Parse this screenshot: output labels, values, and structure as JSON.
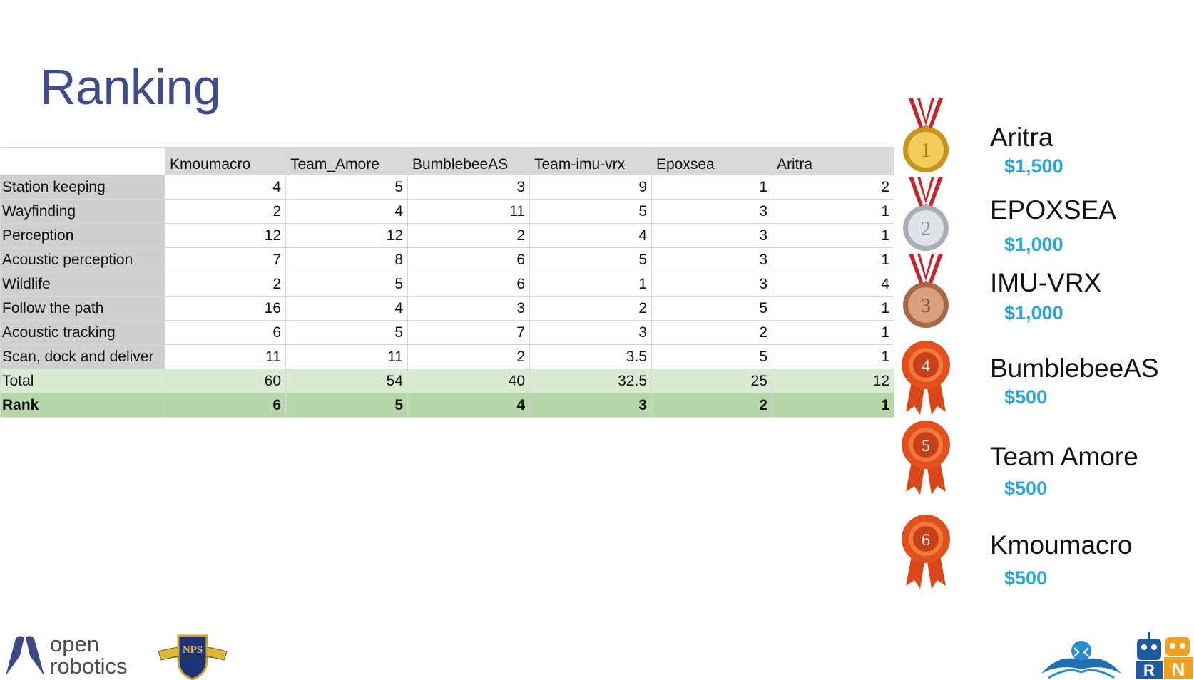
{
  "slide": {
    "title": "Ranking"
  },
  "table": {
    "columns": [
      "Kmoumacro",
      "Team_Amore",
      "BumblebeeAS",
      "Team-imu-vrx",
      "Epoxsea",
      "Aritra"
    ],
    "rows": [
      {
        "label": "Station keeping",
        "values": [
          "4",
          "5",
          "3",
          "9",
          "1",
          "2"
        ]
      },
      {
        "label": "Wayfinding",
        "values": [
          "2",
          "4",
          "11",
          "5",
          "3",
          "1"
        ]
      },
      {
        "label": "Perception",
        "values": [
          "12",
          "12",
          "2",
          "4",
          "3",
          "1"
        ]
      },
      {
        "label": "Acoustic perception",
        "values": [
          "7",
          "8",
          "6",
          "5",
          "3",
          "1"
        ]
      },
      {
        "label": "Wildlife",
        "values": [
          "2",
          "5",
          "6",
          "1",
          "3",
          "4"
        ]
      },
      {
        "label": "Follow the path",
        "values": [
          "16",
          "4",
          "3",
          "2",
          "5",
          "1"
        ]
      },
      {
        "label": "Acoustic tracking",
        "values": [
          "6",
          "5",
          "7",
          "3",
          "2",
          "1"
        ]
      },
      {
        "label": "Scan, dock and deliver",
        "values": [
          "11",
          "11",
          "2",
          "3.5",
          "5",
          "1"
        ]
      }
    ],
    "total": {
      "label": "Total",
      "values": [
        "60",
        "54",
        "40",
        "32.5",
        "25",
        "12"
      ]
    },
    "rank": {
      "label": "Rank",
      "values": [
        "6",
        "5",
        "4",
        "3",
        "2",
        "1"
      ]
    }
  },
  "awards": [
    {
      "place": "1",
      "team": "Aritra",
      "prize": "$1,500",
      "medal": "gold-medal-icon",
      "color": "#e2b23a"
    },
    {
      "place": "2",
      "team": "EPOXSEA",
      "prize": "$1,000",
      "medal": "silver-medal-icon",
      "color": "#c9ccd1"
    },
    {
      "place": "3",
      "team": "IMU-VRX",
      "prize": "$1,000",
      "medal": "bronze-medal-icon",
      "color": "#c98a66"
    },
    {
      "place": "4",
      "team": "BumblebeeAS",
      "prize": "$500",
      "medal": "ribbon-rosette-icon",
      "color": "#e2501e"
    },
    {
      "place": "5",
      "team": "Team Amore",
      "prize": "$500",
      "medal": "ribbon-rosette-icon",
      "color": "#e2501e"
    },
    {
      "place": "6",
      "team": "Kmoumacro",
      "prize": "$500",
      "medal": "ribbon-rosette-icon",
      "color": "#e2501e"
    }
  ],
  "logos": {
    "open_robotics": {
      "line1": "open",
      "line2": "robotics"
    },
    "nps": {
      "text": "NPS",
      "motto": "PRAESTANTIA PER SCIENTIAM"
    },
    "rn": {
      "letters": "RN"
    }
  },
  "colors": {
    "title": "#3f4b8a",
    "prize": "#29a8d8",
    "total_row": "#d9ead3",
    "rank_row": "#b6d7a8",
    "header": "#d9d9d9"
  }
}
